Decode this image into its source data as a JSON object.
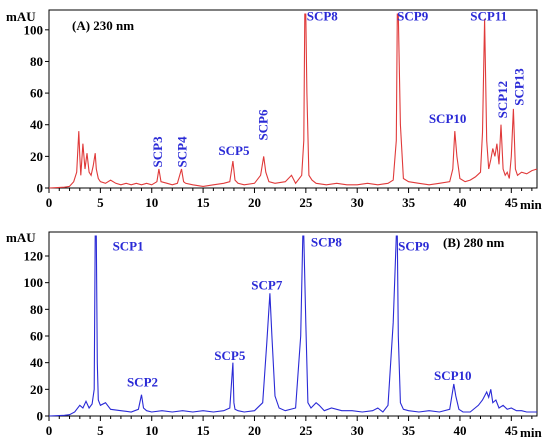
{
  "chart_data": [
    {
      "type": "line",
      "title": "(A) 230 nm",
      "ylabel": "mAU",
      "xlabel": "min",
      "xlim": [
        0,
        47.5
      ],
      "ylim": [
        0,
        110
      ],
      "xticks": [
        0,
        5,
        10,
        15,
        20,
        25,
        30,
        35,
        40,
        45
      ],
      "yticks": [
        0,
        20,
        40,
        60,
        80,
        100
      ],
      "color": "#e03a3a",
      "series": [
        {
          "x": [
            0,
            1.5,
            2.0,
            2.4,
            2.7,
            2.9,
            3.0,
            3.1,
            3.3,
            3.5,
            3.7,
            3.9,
            4.1,
            4.3,
            4.5,
            4.6,
            4.8,
            5.0,
            5.5,
            6.0,
            6.5,
            7.0,
            7.5,
            8.0,
            8.5,
            9.0,
            9.5,
            10.0,
            10.5,
            10.7,
            10.9,
            11.5,
            12.0,
            12.5,
            12.9,
            13.1,
            13.3,
            14.0,
            15.0,
            16.0,
            17.0,
            17.6,
            17.9,
            18.1,
            18.4,
            19.0,
            20.0,
            20.6,
            20.9,
            21.1,
            21.4,
            22.0,
            23.0,
            23.6,
            24.0,
            24.6,
            24.8,
            24.9,
            25.0,
            25.1,
            25.3,
            25.6,
            26.0,
            27.0,
            28.0,
            29.0,
            30.0,
            31.0,
            32.0,
            33.0,
            33.5,
            33.8,
            33.9,
            34.0,
            34.2,
            34.5,
            35.0,
            36.0,
            37.0,
            38.0,
            39.0,
            39.3,
            39.5,
            39.7,
            40.0,
            40.5,
            41.0,
            41.5,
            42.0,
            42.2,
            42.4,
            42.6,
            42.8,
            43.0,
            43.2,
            43.4,
            43.6,
            43.8,
            44.0,
            44.2,
            44.4,
            44.6,
            44.8,
            45.0,
            45.2,
            45.4,
            45.6,
            46.0,
            46.5,
            47.0,
            47.5
          ],
          "y": [
            0,
            0.5,
            1,
            4,
            10,
            36,
            20,
            8,
            28,
            12,
            22,
            10,
            8,
            14,
            22,
            12,
            6,
            4,
            3,
            5,
            3,
            2,
            3,
            2,
            3,
            2,
            3,
            2,
            4,
            12,
            4,
            3,
            2,
            3,
            12,
            4,
            3,
            2,
            1,
            2,
            3,
            4,
            17,
            5,
            3,
            2,
            3,
            8,
            20,
            10,
            4,
            3,
            4,
            8,
            3,
            8,
            30,
            110,
            110,
            60,
            8,
            5,
            3,
            2,
            3,
            2,
            2,
            3,
            2,
            3,
            5,
            30,
            110,
            110,
            40,
            6,
            4,
            3,
            2,
            3,
            4,
            12,
            36,
            20,
            6,
            4,
            5,
            7,
            10,
            35,
            107,
            30,
            12,
            18,
            25,
            20,
            28,
            15,
            40,
            12,
            8,
            10,
            6,
            20,
            50,
            12,
            8,
            10,
            9,
            11,
            12
          ]
        }
      ],
      "annotations": [
        "SCP3",
        "SCP4",
        "SCP5",
        "SCP6",
        "SCP8",
        "SCP9",
        "SCP10",
        "SCP11",
        "SCP12",
        "SCP13"
      ]
    },
    {
      "type": "line",
      "title": "(B) 280 nm",
      "ylabel": "mAU",
      "xlabel": "min",
      "xlim": [
        0,
        47.5
      ],
      "ylim": [
        0,
        135
      ],
      "xticks": [
        0,
        5,
        10,
        15,
        20,
        25,
        30,
        35,
        40,
        45
      ],
      "yticks": [
        0,
        20,
        40,
        60,
        80,
        100,
        120
      ],
      "color": "#2a2ad6",
      "series": [
        {
          "x": [
            0,
            1.5,
            2.0,
            2.5,
            3.0,
            3.3,
            3.6,
            3.9,
            4.2,
            4.4,
            4.5,
            4.6,
            4.7,
            4.8,
            5.0,
            5.5,
            6.0,
            7.0,
            8.0,
            8.7,
            9.0,
            9.2,
            9.5,
            10.0,
            11.0,
            12.0,
            13.0,
            14.0,
            15.0,
            16.0,
            17.0,
            17.6,
            17.9,
            18.0,
            18.1,
            18.4,
            19.0,
            20.0,
            20.8,
            21.2,
            21.5,
            21.7,
            22.0,
            22.4,
            23.0,
            24.0,
            24.5,
            24.7,
            24.8,
            25.0,
            25.2,
            25.5,
            26.0,
            26.3,
            26.8,
            27.5,
            28.5,
            29.5,
            30.5,
            31.5,
            32.0,
            32.5,
            33.0,
            33.5,
            33.8,
            33.9,
            34.0,
            34.2,
            34.5,
            35.0,
            36.0,
            37.0,
            38.0,
            39.0,
            39.4,
            39.6,
            39.9,
            40.3,
            41.0,
            41.8,
            42.2,
            42.6,
            42.8,
            43.0,
            43.2,
            43.5,
            43.8,
            44.2,
            44.6,
            45.0,
            45.5,
            46.0,
            46.5,
            47.0,
            47.5
          ],
          "y": [
            0,
            0.5,
            1,
            3,
            8,
            6,
            11,
            6,
            9,
            20,
            135,
            135,
            40,
            12,
            8,
            10,
            5,
            4,
            3,
            5,
            16,
            6,
            4,
            3,
            4,
            3,
            4,
            3,
            4,
            3,
            4,
            6,
            40,
            10,
            5,
            4,
            3,
            4,
            10,
            55,
            92,
            60,
            15,
            6,
            4,
            6,
            60,
            135,
            135,
            70,
            10,
            6,
            10,
            8,
            4,
            6,
            4,
            4,
            3,
            4,
            6,
            3,
            8,
            70,
            135,
            135,
            60,
            10,
            5,
            4,
            3,
            4,
            3,
            5,
            24,
            15,
            5,
            3,
            3,
            8,
            12,
            18,
            14,
            20,
            10,
            12,
            6,
            8,
            5,
            6,
            4,
            4,
            3,
            3,
            3
          ]
        }
      ],
      "annotations": [
        "SCP1",
        "SCP2",
        "SCP5",
        "SCP7",
        "SCP8",
        "SCP9",
        "SCP10"
      ]
    }
  ],
  "axis_labels": {
    "top_y": "mAU",
    "top_x": "min",
    "bottom_y": "mAU",
    "bottom_x": "min"
  },
  "panel_titles": {
    "top": "(A) 230 nm",
    "bottom": "(B) 280 nm"
  },
  "peak_labels_top": [
    {
      "text": "SCP3",
      "x": 10.7,
      "y": 13,
      "vertical": true
    },
    {
      "text": "SCP4",
      "x": 13.1,
      "y": 13,
      "vertical": true
    },
    {
      "text": "SCP5",
      "x": 18.0,
      "y": 21,
      "vertical": false
    },
    {
      "text": "SCP6",
      "x": 21.0,
      "y": 30,
      "vertical": true
    },
    {
      "text": "SCP8",
      "x": 26.6,
      "y": 106,
      "vertical": false
    },
    {
      "text": "SCP9",
      "x": 35.4,
      "y": 106,
      "vertical": false
    },
    {
      "text": "SCP10",
      "x": 38.8,
      "y": 41,
      "vertical": false
    },
    {
      "text": "SCP11",
      "x": 42.8,
      "y": 106,
      "vertical": false
    },
    {
      "text": "SCP12",
      "x": 44.3,
      "y": 44,
      "vertical": true
    },
    {
      "text": "SCP13",
      "x": 45.9,
      "y": 52,
      "vertical": true
    }
  ],
  "peak_labels_bottom": [
    {
      "text": "SCP1",
      "x": 7.7,
      "y": 124,
      "vertical": false
    },
    {
      "text": "SCP2",
      "x": 9.1,
      "y": 22,
      "vertical": false
    },
    {
      "text": "SCP5",
      "x": 17.6,
      "y": 42,
      "vertical": false
    },
    {
      "text": "SCP7",
      "x": 21.2,
      "y": 95,
      "vertical": false
    },
    {
      "text": "SCP8",
      "x": 27.0,
      "y": 127,
      "vertical": false
    },
    {
      "text": "SCP9",
      "x": 35.5,
      "y": 124,
      "vertical": false
    },
    {
      "text": "SCP10",
      "x": 39.3,
      "y": 27,
      "vertical": false
    }
  ],
  "colors": {
    "trace_top": "#e03a3a",
    "trace_bottom": "#2a2ad6",
    "peak_label": "#2a2ad6",
    "axis": "#000000"
  }
}
